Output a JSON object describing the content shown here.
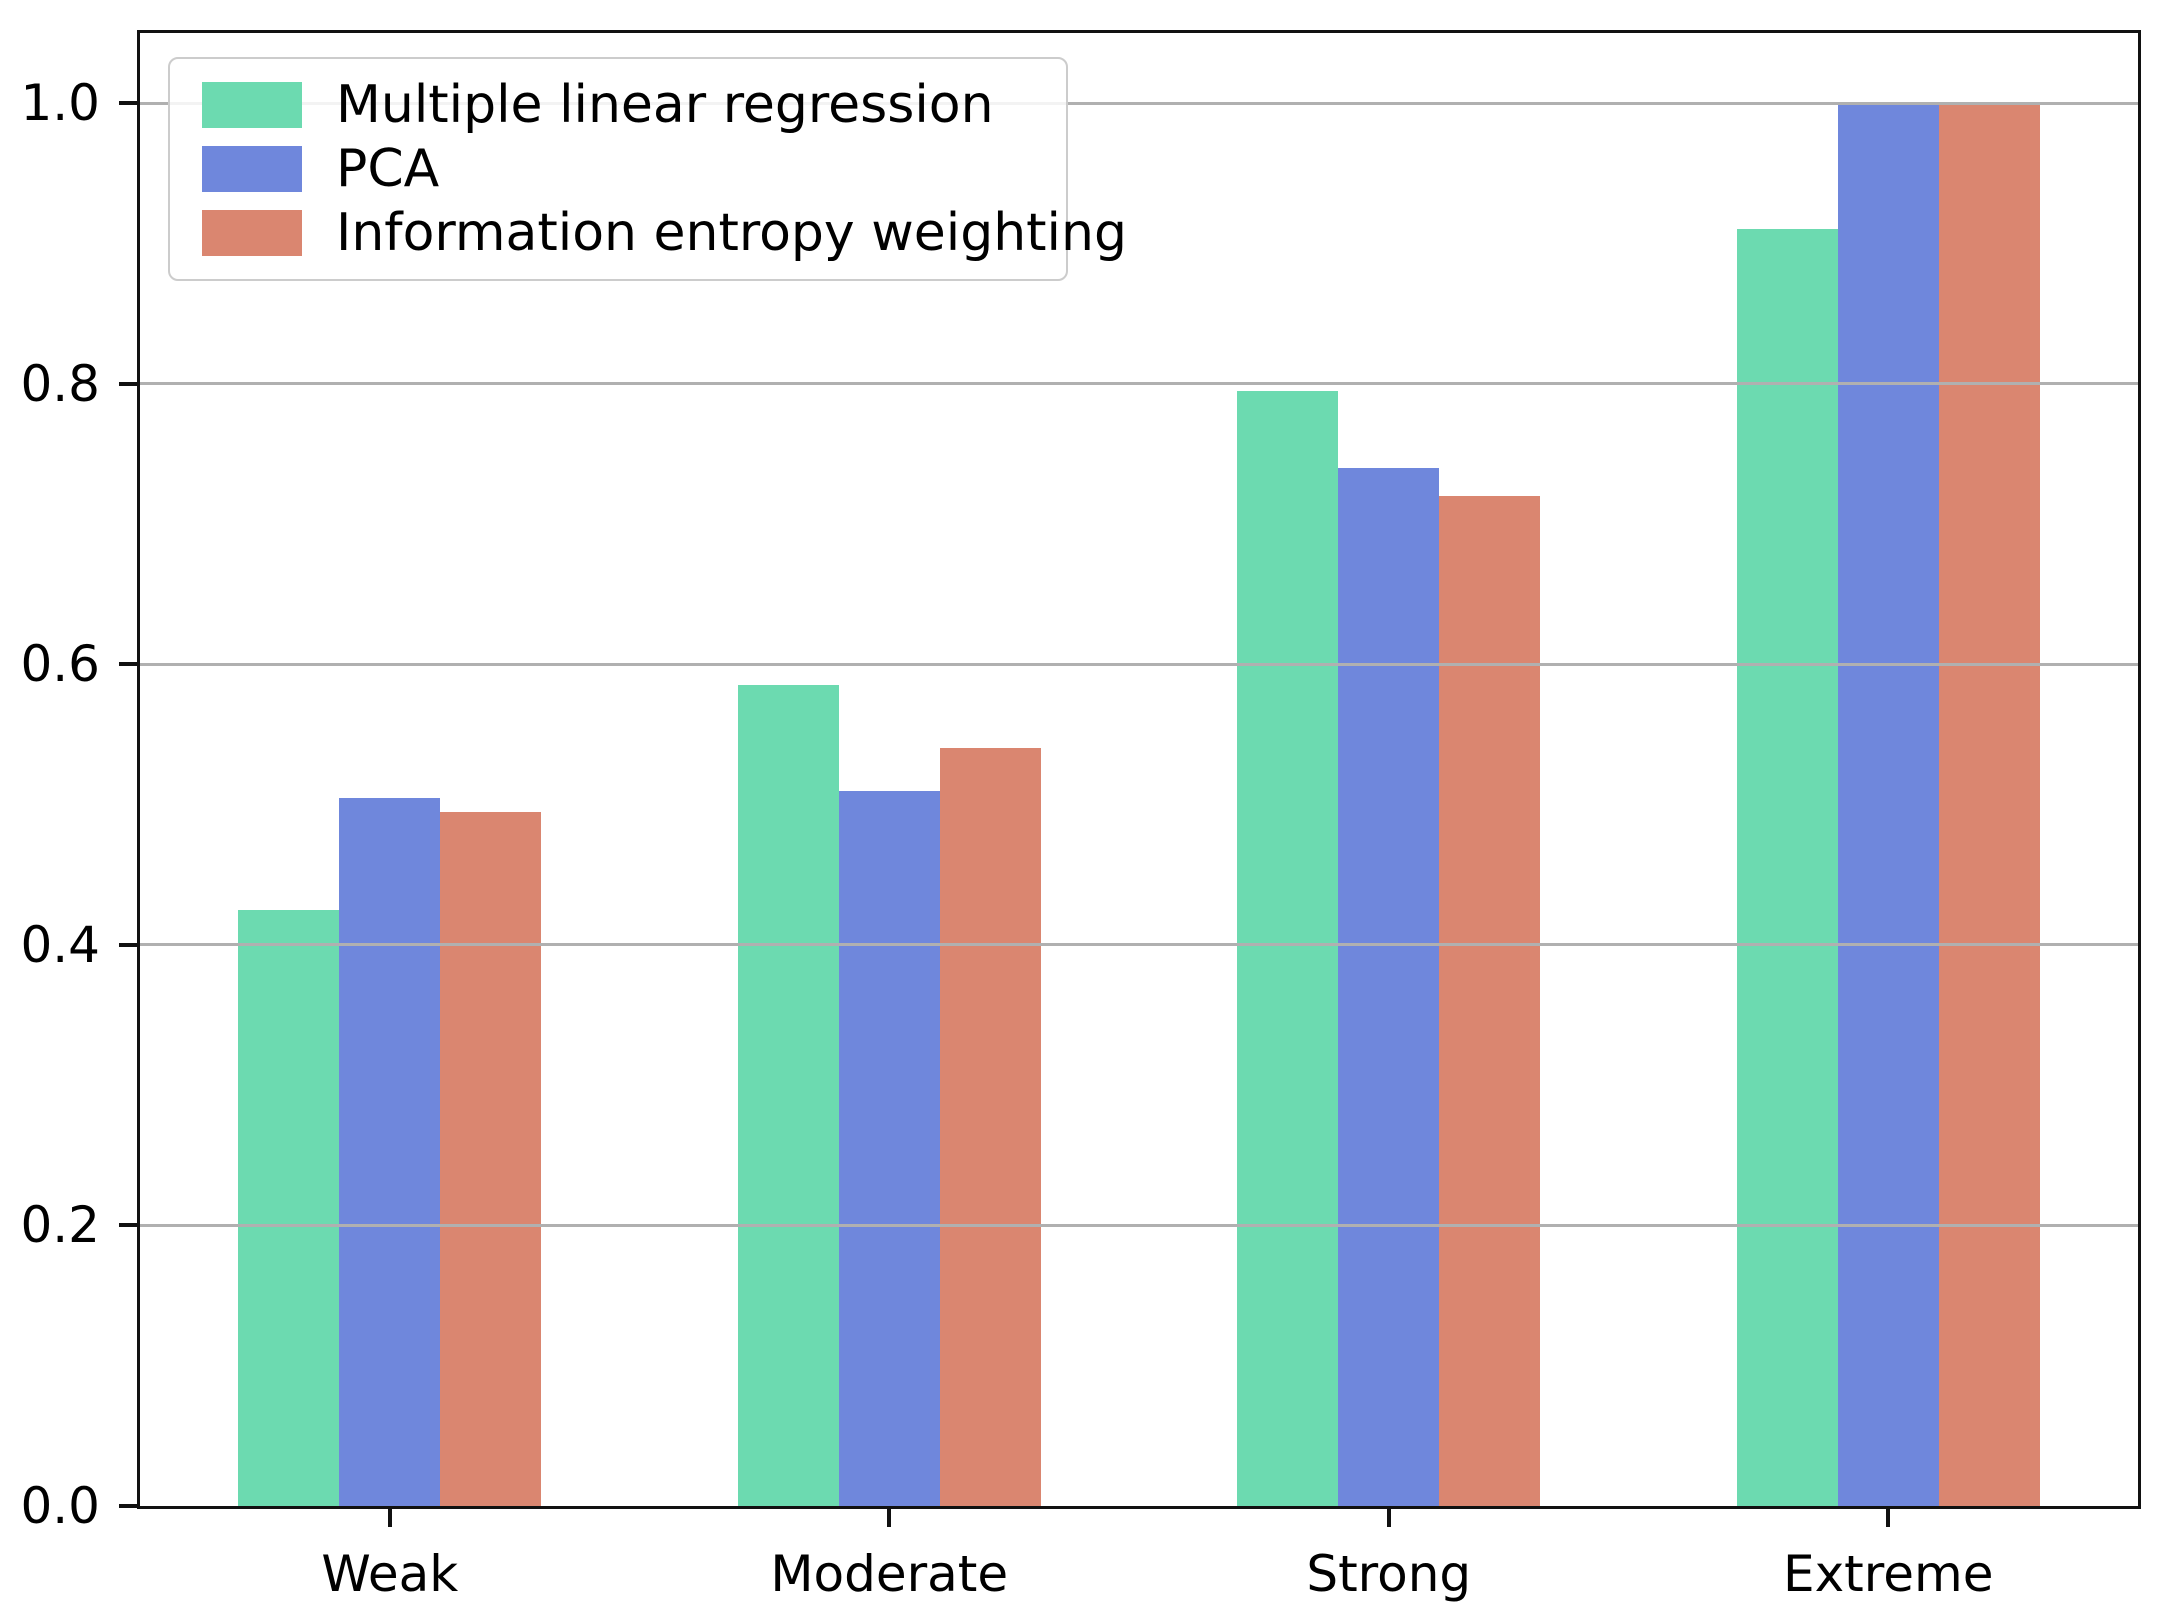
{
  "chart_data": {
    "type": "bar",
    "categories": [
      "Weak",
      "Moderate",
      "Strong",
      "Extreme"
    ],
    "series": [
      {
        "name": "Multiple linear regression",
        "color": "#6cdab0",
        "values": [
          0.425,
          0.585,
          0.795,
          0.91
        ]
      },
      {
        "name": "PCA",
        "color": "#6f87dc",
        "values": [
          0.505,
          0.51,
          0.74,
          1.0
        ]
      },
      {
        "name": "Information entropy weighting",
        "color": "#da8670",
        "values": [
          0.495,
          0.54,
          0.72,
          1.0
        ]
      }
    ],
    "title": "",
    "xlabel": "",
    "ylabel": "",
    "ylim": [
      0,
      1.05
    ],
    "yticks": [
      0.0,
      0.2,
      0.4,
      0.6,
      0.8,
      1.0
    ],
    "ytick_labels": [
      "0.0",
      "0.2",
      "0.4",
      "0.6",
      "0.8",
      "1.0"
    ],
    "grid": "horizontal-on",
    "legend_position": "upper-left",
    "grid_color": "#b0b0b0",
    "spine_color": "#111111",
    "text_color": "#000000",
    "background_color": "#ffffff",
    "bar_group_fraction": 0.606
  }
}
